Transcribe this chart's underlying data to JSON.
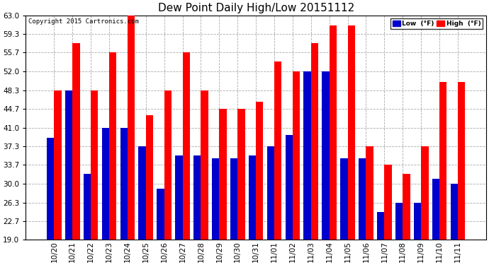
{
  "title": "Dew Point Daily High/Low 20151112",
  "copyright": "Copyright 2015 Cartronics.com",
  "categories": [
    "10/20",
    "10/21",
    "10/22",
    "10/23",
    "10/24",
    "10/25",
    "10/26",
    "10/27",
    "10/28",
    "10/29",
    "10/30",
    "10/31",
    "11/01",
    "11/02",
    "11/03",
    "11/04",
    "11/05",
    "11/06",
    "11/07",
    "11/08",
    "11/09",
    "11/10",
    "11/11"
  ],
  "high_values": [
    48.3,
    57.5,
    48.3,
    55.7,
    63.0,
    43.5,
    48.3,
    55.7,
    48.3,
    44.7,
    44.7,
    46.0,
    54.0,
    52.0,
    57.5,
    61.0,
    61.0,
    37.3,
    33.7,
    32.0,
    37.3,
    50.0,
    50.0
  ],
  "low_values": [
    39.0,
    48.3,
    32.0,
    41.0,
    41.0,
    37.3,
    29.0,
    35.5,
    35.5,
    35.0,
    35.0,
    35.5,
    37.3,
    39.5,
    52.0,
    52.0,
    35.0,
    35.0,
    24.5,
    26.3,
    26.3,
    31.0,
    30.0
  ],
  "high_color": "#FF0000",
  "low_color": "#0000CC",
  "background_color": "#FFFFFF",
  "plot_bg_color": "#FFFFFF",
  "grid_color": "#AAAAAA",
  "ylim": [
    19.0,
    63.0
  ],
  "yticks": [
    19.0,
    22.7,
    26.3,
    30.0,
    33.7,
    37.3,
    41.0,
    44.7,
    48.3,
    52.0,
    55.7,
    59.3,
    63.0
  ],
  "legend_low_label": "Low  (°F)",
  "legend_high_label": "High  (°F)",
  "bar_width": 0.4,
  "title_fontsize": 11,
  "tick_fontsize": 7.5,
  "copyright_fontsize": 6.5
}
